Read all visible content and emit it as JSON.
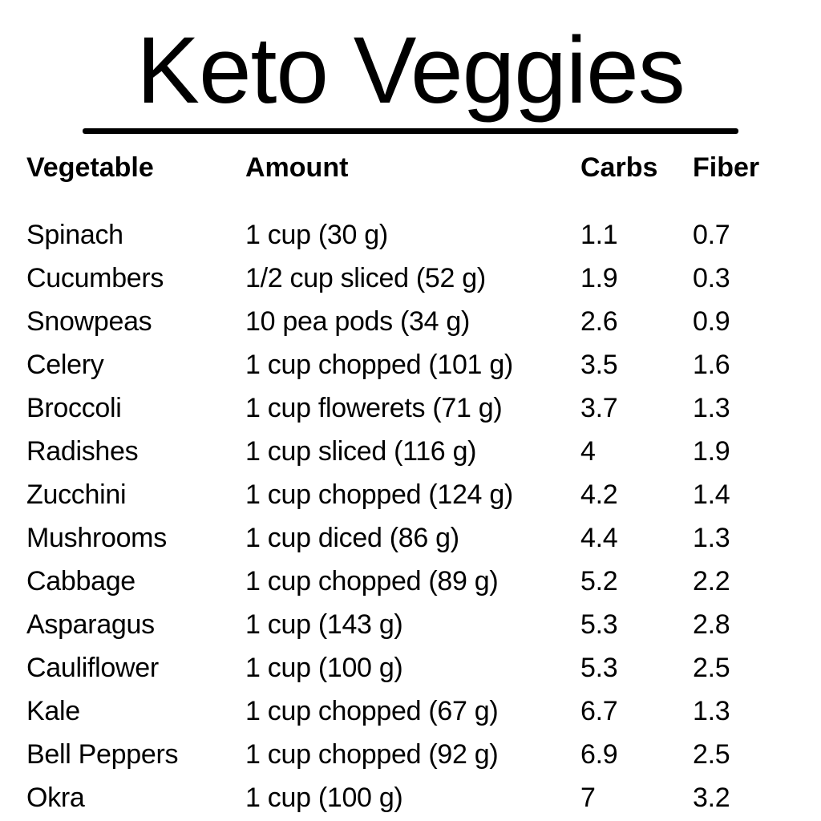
{
  "title": "Keto Veggies",
  "table": {
    "headers": {
      "vegetable": "Vegetable",
      "amount": "Amount",
      "carbs": "Carbs",
      "fiber": "Fiber"
    },
    "rows": [
      {
        "vegetable": "Spinach",
        "amount": "1 cup (30 g)",
        "carbs": "1.1",
        "fiber": "0.7"
      },
      {
        "vegetable": "Cucumbers",
        "amount": "1/2 cup sliced (52 g)",
        "carbs": "1.9",
        "fiber": "0.3"
      },
      {
        "vegetable": "Snowpeas",
        "amount": "10 pea pods (34 g)",
        "carbs": "2.6",
        "fiber": "0.9"
      },
      {
        "vegetable": "Celery",
        "amount": "1 cup chopped (101 g)",
        "carbs": "3.5",
        "fiber": "1.6"
      },
      {
        "vegetable": "Broccoli",
        "amount": "1 cup flowerets (71 g)",
        "carbs": "3.7",
        "fiber": "1.3"
      },
      {
        "vegetable": "Radishes",
        "amount": "1 cup sliced (116 g)",
        "carbs": "4",
        "fiber": "1.9"
      },
      {
        "vegetable": "Zucchini",
        "amount": "1 cup chopped (124 g)",
        "carbs": "4.2",
        "fiber": "1.4"
      },
      {
        "vegetable": "Mushrooms",
        "amount": "1 cup diced (86 g)",
        "carbs": "4.4",
        "fiber": "1.3"
      },
      {
        "vegetable": "Cabbage",
        "amount": "1 cup chopped (89 g)",
        "carbs": "5.2",
        "fiber": "2.2"
      },
      {
        "vegetable": "Asparagus",
        "amount": "1 cup (143 g)",
        "carbs": "5.3",
        "fiber": "2.8"
      },
      {
        "vegetable": "Cauliflower",
        "amount": "1 cup (100 g)",
        "carbs": "5.3",
        "fiber": "2.5"
      },
      {
        "vegetable": "Kale",
        "amount": "1 cup chopped (67 g)",
        "carbs": "6.7",
        "fiber": "1.3"
      },
      {
        "vegetable": "Bell Peppers",
        "amount": "1 cup chopped (92 g)",
        "carbs": "6.9",
        "fiber": "2.5"
      },
      {
        "vegetable": "Okra",
        "amount": "1 cup (100 g)",
        "carbs": "7",
        "fiber": "3.2"
      }
    ]
  }
}
